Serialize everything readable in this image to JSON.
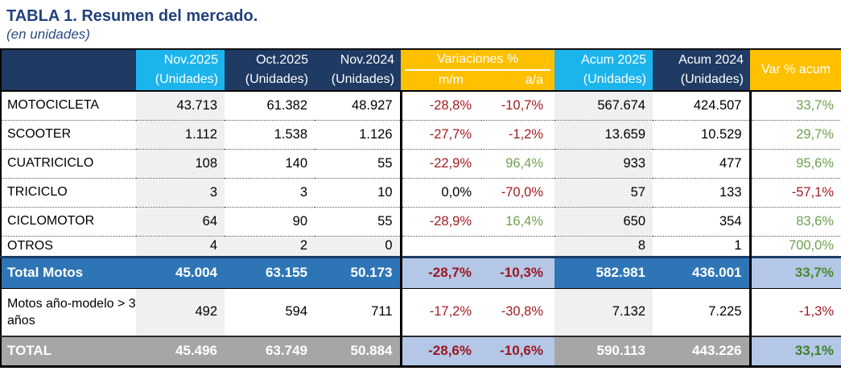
{
  "title": "TABLA 1. Resumen del mercado.",
  "subtitle": "(en unidades)",
  "colors": {
    "header_navy": "#1F3A63",
    "highlight_cyan": "#1CB4EC",
    "highlight_yellow": "#FFC000",
    "total_blue": "#2E75B6",
    "total_light_blue": "#B4C7E7",
    "total_gray": "#A6A6A6",
    "column_shade": "#F0F0F0",
    "negative_red": "#A21C21",
    "positive_green": "#6FA052"
  },
  "table": {
    "header": {
      "nov2025_1": "Nov.2025",
      "nov2025_2": "(Unidades)",
      "oct2025_1": "Oct.2025",
      "oct2025_2": "(Unidades)",
      "nov2024_1": "Nov.2024",
      "nov2024_2": "(Unidades)",
      "variaciones": "Variaciones %",
      "mm": "m/m",
      "aa": "a/a",
      "acum2025_1": "Acum 2025",
      "acum2025_2": "(Unidades)",
      "acum2024_1": "Acum 2024",
      "acum2024_2": "(Unidades)",
      "var_acum": "Var % acum"
    },
    "rows": [
      {
        "label": "MOTOCICLETA",
        "nov2025": "43.713",
        "oct2025": "61.382",
        "nov2024": "48.927",
        "mm": "-28,8%",
        "aa": "-10,7%",
        "acum2025": "567.674",
        "acum2024": "424.507",
        "var_acum": "33,7%"
      },
      {
        "label": "SCOOTER",
        "nov2025": "1.112",
        "oct2025": "1.538",
        "nov2024": "1.126",
        "mm": "-27,7%",
        "aa": "-1,2%",
        "acum2025": "13.659",
        "acum2024": "10.529",
        "var_acum": "29,7%"
      },
      {
        "label": "CUATRICICLO",
        "nov2025": "108",
        "oct2025": "140",
        "nov2024": "55",
        "mm": "-22,9%",
        "aa": "96,4%",
        "acum2025": "933",
        "acum2024": "477",
        "var_acum": "95,6%"
      },
      {
        "label": "TRICICLO",
        "nov2025": "3",
        "oct2025": "3",
        "nov2024": "10",
        "mm": "0,0%",
        "aa": "-70,0%",
        "acum2025": "57",
        "acum2024": "133",
        "var_acum": "-57,1%"
      },
      {
        "label": "CICLOMOTOR",
        "nov2025": "64",
        "oct2025": "90",
        "nov2024": "55",
        "mm": "-28,9%",
        "aa": "16,4%",
        "acum2025": "650",
        "acum2024": "354",
        "var_acum": "83,6%"
      },
      {
        "label": "OTROS",
        "nov2025": "4",
        "oct2025": "2",
        "nov2024": "0",
        "mm": "",
        "aa": "",
        "acum2025": "8",
        "acum2024": "1",
        "var_acum": "700,0%"
      },
      {
        "label": "Total Motos",
        "nov2025": "45.004",
        "oct2025": "63.155",
        "nov2024": "50.173",
        "mm": "-28,7%",
        "aa": "-10,3%",
        "acum2025": "582.981",
        "acum2024": "436.001",
        "var_acum": "33,7%"
      },
      {
        "label": "Motos año-modelo > 3 años",
        "nov2025": "492",
        "oct2025": "594",
        "nov2024": "711",
        "mm": "-17,2%",
        "aa": "-30,8%",
        "acum2025": "7.132",
        "acum2024": "7.225",
        "var_acum": "-1,3%"
      },
      {
        "label": "TOTAL",
        "nov2025": "45.496",
        "oct2025": "63.749",
        "nov2024": "50.884",
        "mm": "-28,6%",
        "aa": "-10,6%",
        "acum2025": "590.113",
        "acum2024": "443.226",
        "var_acum": "33,1%"
      }
    ]
  }
}
